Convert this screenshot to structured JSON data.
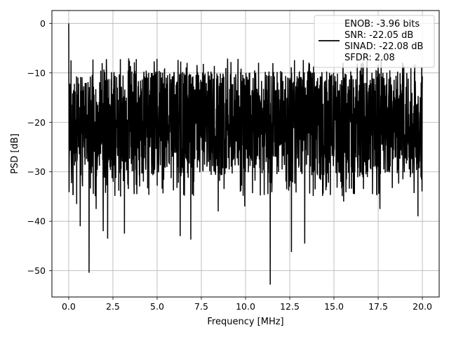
{
  "chart_data": {
    "type": "line",
    "title": "",
    "xlabel": "Frequency [MHz]",
    "ylabel": "PSD [dB]",
    "xlim": [
      -0.95,
      20.95
    ],
    "ylim": [
      -55.3,
      2.6
    ],
    "xticks": [
      0.0,
      2.5,
      5.0,
      7.5,
      10.0,
      12.5,
      15.0,
      17.5,
      20.0
    ],
    "xtick_labels": [
      "0.0",
      "2.5",
      "5.0",
      "7.5",
      "10.0",
      "12.5",
      "15.0",
      "17.5",
      "20.0"
    ],
    "yticks": [
      0,
      -10,
      -20,
      -30,
      -40,
      -50
    ],
    "ytick_labels": [
      "0",
      "−10",
      "−20",
      "−30",
      "−40",
      "−50"
    ],
    "grid": true,
    "legend_position": "top-right",
    "legend_lines": [
      "ENOB: -3.96 bits",
      "SNR: -22.05 dB",
      "SINAD: -22.08 dB",
      "SFDR: 2.08"
    ],
    "series": [
      {
        "color": "#000000",
        "x_range": [
          0.0,
          20.0
        ],
        "num_points": 2000,
        "noise_floor_band_db": [
          -30,
          -10
        ],
        "peaks": [
          {
            "x": 0.0,
            "y": 0.0
          },
          {
            "x": 0.1,
            "y": -12.5
          },
          {
            "x": 0.25,
            "y": -34.5
          },
          {
            "x": 0.45,
            "y": -36.5
          },
          {
            "x": 0.65,
            "y": -41.0
          },
          {
            "x": 1.15,
            "y": -50.4
          },
          {
            "x": 1.55,
            "y": -37.5
          },
          {
            "x": 1.95,
            "y": -42.0
          },
          {
            "x": 2.2,
            "y": -43.5
          },
          {
            "x": 3.15,
            "y": -42.5
          },
          {
            "x": 3.7,
            "y": -34.5
          },
          {
            "x": 6.3,
            "y": -43.0
          },
          {
            "x": 6.9,
            "y": -43.7
          },
          {
            "x": 8.45,
            "y": -38.0
          },
          {
            "x": 9.95,
            "y": -37.0
          },
          {
            "x": 11.4,
            "y": -52.8
          },
          {
            "x": 12.6,
            "y": -46.2
          },
          {
            "x": 13.35,
            "y": -44.5
          },
          {
            "x": 15.55,
            "y": -36.0
          },
          {
            "x": 17.6,
            "y": -37.5
          },
          {
            "x": 19.75,
            "y": -39.0
          }
        ]
      }
    ]
  }
}
